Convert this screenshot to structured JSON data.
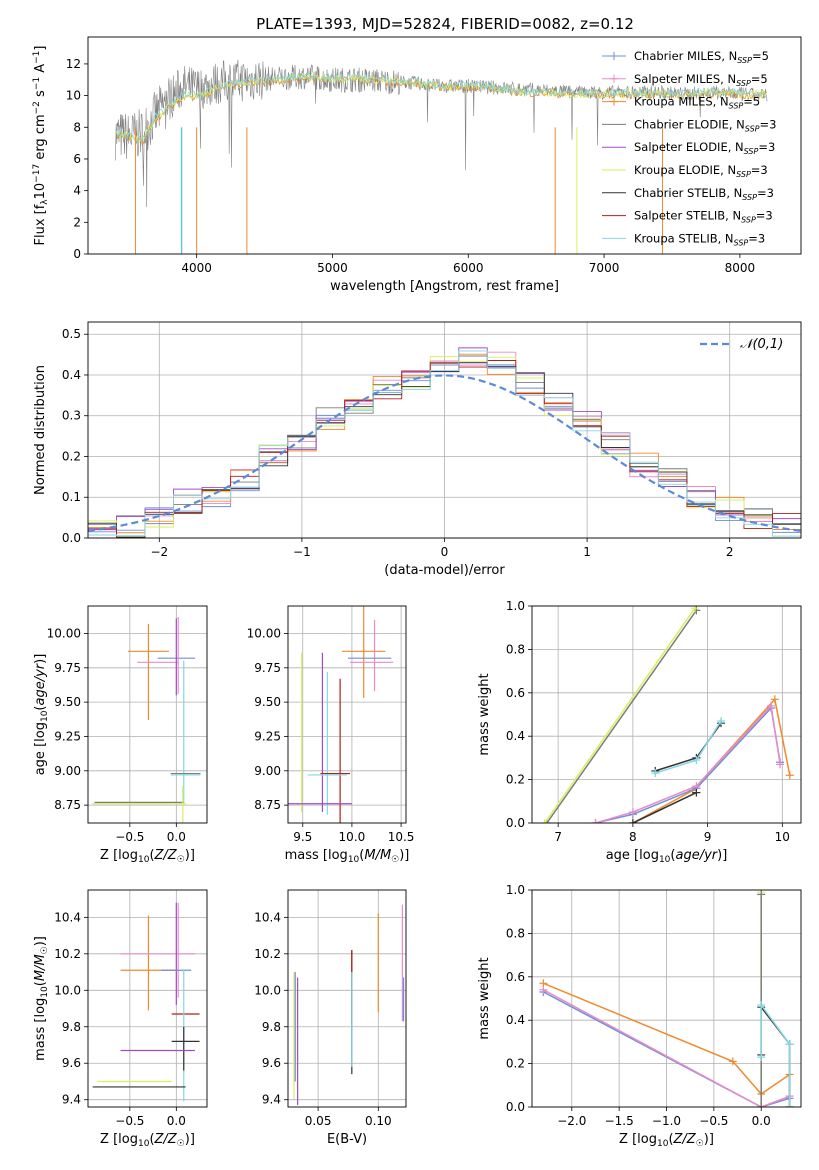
{
  "title": "PLATE=1393, MJD=52824, FIBERID=0082, z=0.12",
  "colors": {
    "gray": "#808080",
    "blue": "#1f77b4",
    "orange": "#ff7f0e",
    "green": "#2ca02c",
    "red": "#d62728",
    "purple": "#9467bd",
    "brown": "#8c564b",
    "pink": "#e377c2",
    "olive": "#bcbd22",
    "cyan": "#17becf",
    "cornflower": "#6495ed",
    "yellowgreen": "#d4e94d",
    "normal": "#5b8bd6",
    "grid": "#b0b0b0"
  },
  "legend_models": [
    {
      "name": "Chabrier MILES, N",
      "sub": "SSP",
      "eq": "=5",
      "color": "#6f8fd8"
    },
    {
      "name": "Salpeter MILES, N",
      "sub": "SSP",
      "eq": "=5",
      "color": "#e98ac9"
    },
    {
      "name": "Kroupa MILES, N",
      "sub": "SSP",
      "eq": "=5",
      "color": "#f08a2e"
    },
    {
      "name": "Chabrier ELODIE, N",
      "sub": "SSP",
      "eq": "=3",
      "color": "#7c7c7c"
    },
    {
      "name": "Salpeter ELODIE, N",
      "sub": "SSP",
      "eq": "=3",
      "color": "#a04cc9"
    },
    {
      "name": "Kroupa ELODIE, N",
      "sub": "SSP",
      "eq": "=3",
      "color": "#d9ef5a"
    },
    {
      "name": "Chabrier STELIB, N",
      "sub": "SSP",
      "eq": "=3",
      "color": "#333333"
    },
    {
      "name": "Salpeter STELIB, N",
      "sub": "SSP",
      "eq": "=3",
      "color": "#b51d1d"
    },
    {
      "name": "Kroupa STELIB, N",
      "sub": "SSP",
      "eq": "=3",
      "color": "#84d7e6"
    }
  ],
  "chart_data": [
    {
      "id": "spectrum",
      "type": "line",
      "xlabel": "wavelength [Angstrom, rest frame]",
      "ylabel": "Flux [f_λ10^-17 erg cm^-2 s^-1 A^-1]",
      "xlim": [
        3200,
        8450
      ],
      "ylim": [
        0,
        13.7
      ],
      "xticks": [
        4000,
        5000,
        6000,
        7000,
        8000
      ],
      "yticks": [
        0,
        2,
        4,
        6,
        8,
        10,
        12
      ],
      "grid": false,
      "legend": "top-right",
      "data_series": {
        "name": "data",
        "x": [
          3400,
          3500,
          3600,
          3700,
          3800,
          3900,
          4000,
          4200,
          4400,
          4600,
          4800,
          5000,
          5200,
          5400,
          5600,
          5800,
          6000,
          6200,
          6400,
          6600,
          6800,
          7000,
          7200,
          7400,
          7600,
          7800,
          8000,
          8200
        ],
        "y": [
          7.5,
          7.4,
          7.6,
          8.8,
          9.8,
          10.6,
          10.4,
          10.9,
          11.0,
          11.1,
          11.2,
          11.0,
          11.0,
          10.9,
          10.8,
          10.6,
          10.6,
          10.5,
          10.4,
          10.3,
          10.2,
          10.2,
          10.2,
          10.2,
          10.1,
          10.2,
          10.1,
          10.0
        ]
      },
      "model_series": {
        "name": "models",
        "x": [
          3400,
          3500,
          3600,
          3700,
          3800,
          3900,
          4000,
          4200,
          4400,
          4600,
          4800,
          5000,
          5200,
          5400,
          5600,
          5800,
          6000,
          6200,
          6400,
          6600,
          6800,
          7000,
          7200,
          7400,
          7600,
          7800,
          8000,
          8200
        ],
        "y": [
          7.6,
          7.4,
          7.2,
          8.6,
          9.3,
          10.0,
          10.0,
          10.6,
          10.9,
          11.0,
          11.2,
          11.1,
          11.1,
          10.9,
          10.8,
          10.6,
          10.6,
          10.5,
          10.2,
          10.2,
          10.1,
          10.1,
          10.1,
          10.1,
          10.1,
          10.2,
          10.1,
          10.1
        ]
      }
    },
    {
      "id": "residuals",
      "type": "line",
      "xlabel": "(data-model)/error",
      "ylabel": "Normed distribution",
      "xlim": [
        -2.5,
        2.5
      ],
      "ylim": [
        0,
        0.53
      ],
      "xticks": [
        -2,
        -1,
        0,
        1,
        2
      ],
      "yticks": [
        0.0,
        0.1,
        0.2,
        0.3,
        0.4,
        0.5
      ],
      "grid": true,
      "legend": "top-right",
      "normal_label": "𝒩(0,1)",
      "hist_edges": [
        -2.5,
        -2.3,
        -2.1,
        -1.9,
        -1.7,
        -1.5,
        -1.3,
        -1.1,
        -0.9,
        -0.7,
        -0.5,
        -0.3,
        -0.1,
        0.1,
        0.3,
        0.5,
        0.7,
        0.9,
        1.1,
        1.3,
        1.5,
        1.7,
        1.9,
        2.1,
        2.3,
        2.5
      ],
      "hist_values": [
        0.02,
        0.03,
        0.05,
        0.09,
        0.1,
        0.14,
        0.2,
        0.24,
        0.29,
        0.31,
        0.37,
        0.38,
        0.42,
        0.44,
        0.43,
        0.38,
        0.33,
        0.29,
        0.23,
        0.18,
        0.14,
        0.1,
        0.07,
        0.05,
        0.03
      ]
    },
    {
      "id": "age-vs-Z",
      "type": "scatter",
      "xlabel": "Z [log10(Z/Z☉)]",
      "ylabel": "age  [log10(age/yr)]",
      "xlim": [
        -0.95,
        0.33
      ],
      "ylim": [
        8.62,
        10.2
      ],
      "xticks": [
        -0.5,
        0.0
      ],
      "yticks": [
        8.75,
        9.0,
        9.25,
        9.5,
        9.75,
        10.0
      ],
      "grid": true,
      "errorbars": [
        {
          "x": -0.3,
          "xerr": 0.22,
          "y": 9.87,
          "yerr": 0.0,
          "color": "#f08a2e"
        },
        {
          "x": -0.3,
          "xerr": 0.0,
          "y": 9.72,
          "yerr": 0.35,
          "color": "#f08a2e"
        },
        {
          "x": -0.2,
          "xerr": 0.22,
          "y": 9.79,
          "yerr": 0.0,
          "color": "#e98ac9"
        },
        {
          "x": 0.0,
          "xerr": 0.2,
          "y": 9.82,
          "yerr": 0.0,
          "color": "#6f8fd8"
        },
        {
          "x": 0.0,
          "xerr": 0.0,
          "y": 9.83,
          "yerr": 0.28,
          "color": "#a04cc9"
        },
        {
          "x": 0.02,
          "xerr": 0.0,
          "y": 9.84,
          "yerr": 0.28,
          "color": "#e98ac9"
        },
        {
          "x": 0.08,
          "xerr": 0.0,
          "y": 9.28,
          "yerr": 0.52,
          "color": "#84d7e6"
        },
        {
          "x": 0.1,
          "xerr": 0.16,
          "y": 8.98,
          "yerr": 0.0,
          "color": "#7c7c7c"
        },
        {
          "x": 0.1,
          "xerr": 0.16,
          "y": 8.97,
          "yerr": 0.0,
          "color": "#84d7e6"
        },
        {
          "x": -0.4,
          "xerr": 0.48,
          "y": 8.77,
          "yerr": 0.0,
          "color": "#7c7c7c"
        },
        {
          "x": -0.4,
          "xerr": 0.5,
          "y": 8.76,
          "yerr": 0.0,
          "color": "#d9ef5a"
        },
        {
          "x": 0.05,
          "xerr": 0.0,
          "y": 8.76,
          "yerr": 0.0,
          "color": "#a04cc9"
        },
        {
          "x": 0.07,
          "xerr": 0.0,
          "y": 8.75,
          "yerr": 0.14,
          "color": "#d9ef5a"
        }
      ]
    },
    {
      "id": "age-vs-mass",
      "type": "scatter",
      "xlabel": "mass [log10(M/M☉)]",
      "ylabel": "",
      "xlim": [
        9.35,
        10.55
      ],
      "ylim": [
        8.62,
        10.2
      ],
      "xticks": [
        9.5,
        10.0,
        10.5
      ],
      "yticks": [
        8.75,
        9.0,
        9.25,
        9.5,
        9.75,
        10.0
      ],
      "grid": true,
      "errorbars": [
        {
          "x": 10.12,
          "xerr": 0.22,
          "y": 9.87,
          "yerr": 0.0,
          "color": "#f08a2e"
        },
        {
          "x": 10.12,
          "xerr": 0.0,
          "y": 9.88,
          "yerr": 0.35,
          "color": "#f08a2e"
        },
        {
          "x": 10.23,
          "xerr": 0.0,
          "y": 9.84,
          "yerr": 0.26,
          "color": "#e98ac9"
        },
        {
          "x": 10.18,
          "xerr": 0.22,
          "y": 9.82,
          "yerr": 0.0,
          "color": "#6f8fd8"
        },
        {
          "x": 10.2,
          "xerr": 0.22,
          "y": 9.79,
          "yerr": 0.0,
          "color": "#e98ac9"
        },
        {
          "x": 9.7,
          "xerr": 0.0,
          "y": 9.28,
          "yerr": 0.58,
          "color": "#a04cc9"
        },
        {
          "x": 9.49,
          "xerr": 0.0,
          "y": 9.28,
          "yerr": 0.58,
          "color": "#d9ef5a"
        },
        {
          "x": 9.75,
          "xerr": 0.0,
          "y": 9.2,
          "yerr": 0.52,
          "color": "#84d7e6"
        },
        {
          "x": 9.88,
          "xerr": 0.0,
          "y": 9.12,
          "yerr": 0.55,
          "color": "#b51d1d"
        },
        {
          "x": 9.83,
          "xerr": 0.15,
          "y": 8.98,
          "yerr": 0.0,
          "color": "#b51d1d"
        },
        {
          "x": 9.75,
          "xerr": 0.2,
          "y": 8.97,
          "yerr": 0.0,
          "color": "#84d7e6"
        },
        {
          "x": 9.5,
          "xerr": 0.0,
          "y": 8.76,
          "yerr": 0.0,
          "color": "#d9ef5a"
        },
        {
          "x": 9.6,
          "xerr": 0.4,
          "y": 8.76,
          "yerr": 0.0,
          "color": "#a04cc9"
        }
      ]
    },
    {
      "id": "massweight-vs-age",
      "type": "line",
      "xlabel": "age  [log10(age/yr)]",
      "ylabel": "mass weight",
      "xlim": [
        6.65,
        10.25
      ],
      "ylim": [
        0.0,
        1.0
      ],
      "xticks": [
        7,
        8,
        9,
        10
      ],
      "yticks": [
        0.0,
        0.2,
        0.4,
        0.6,
        0.8,
        1.0
      ],
      "grid": true,
      "series": [
        {
          "color": "#f08a2e",
          "x": [
            8.0,
            8.8,
            9.9,
            10.1
          ],
          "y": [
            0.0,
            0.15,
            0.57,
            0.22
          ]
        },
        {
          "color": "#6f8fd8",
          "x": [
            7.5,
            8.0,
            8.85,
            9.85,
            9.97
          ],
          "y": [
            0.0,
            0.04,
            0.16,
            0.53,
            0.28
          ]
        },
        {
          "color": "#e98ac9",
          "x": [
            7.5,
            8.0,
            8.85,
            9.85,
            9.97
          ],
          "y": [
            0.0,
            0.05,
            0.17,
            0.54,
            0.27
          ]
        },
        {
          "color": "#7c7c7c",
          "x": [
            6.85,
            8.85
          ],
          "y": [
            0.0,
            0.98
          ]
        },
        {
          "color": "#d9ef5a",
          "x": [
            6.82,
            8.83
          ],
          "y": [
            0.0,
            0.99
          ]
        },
        {
          "color": "#333333",
          "x": [
            8.3,
            8.85,
            9.18
          ],
          "y": [
            0.24,
            0.3,
            0.46
          ]
        },
        {
          "color": "#84d7e6",
          "x": [
            8.3,
            8.85,
            9.18
          ],
          "y": [
            0.23,
            0.29,
            0.47
          ]
        },
        {
          "color": "#333333",
          "x": [
            8.0,
            8.85
          ],
          "y": [
            0.0,
            0.14
          ]
        }
      ]
    },
    {
      "id": "mass-vs-Z",
      "type": "scatter",
      "xlabel": "Z [log10(Z/Z☉)]",
      "ylabel": "mass [log10(M/M☉)]",
      "xlim": [
        -0.95,
        0.33
      ],
      "ylim": [
        9.36,
        10.55
      ],
      "xticks": [
        -0.5,
        0.0
      ],
      "yticks": [
        9.4,
        9.6,
        9.8,
        10.0,
        10.2,
        10.4
      ],
      "grid": true,
      "errorbars": [
        {
          "x": -0.3,
          "xerr": 0.0,
          "y": 10.15,
          "yerr": 0.26,
          "color": "#f08a2e"
        },
        {
          "x": -0.3,
          "xerr": 0.3,
          "y": 10.11,
          "yerr": 0.0,
          "color": "#f08a2e"
        },
        {
          "x": -0.2,
          "xerr": 0.4,
          "y": 10.2,
          "yerr": 0.0,
          "color": "#e98ac9"
        },
        {
          "x": 0.0,
          "xerr": 0.0,
          "y": 10.2,
          "yerr": 0.28,
          "color": "#a04cc9"
        },
        {
          "x": 0.02,
          "xerr": 0.0,
          "y": 10.22,
          "yerr": 0.26,
          "color": "#e98ac9"
        },
        {
          "x": 0.0,
          "xerr": 0.16,
          "y": 10.11,
          "yerr": 0.0,
          "color": "#6f8fd8"
        },
        {
          "x": 0.1,
          "xerr": 0.15,
          "y": 9.87,
          "yerr": 0.0,
          "color": "#b51d1d"
        },
        {
          "x": 0.08,
          "xerr": 0.0,
          "y": 9.75,
          "yerr": 0.36,
          "color": "#84d7e6"
        },
        {
          "x": 0.08,
          "xerr": 0.0,
          "y": 9.68,
          "yerr": 0.12,
          "color": "#333333"
        },
        {
          "x": 0.1,
          "xerr": 0.15,
          "y": 9.72,
          "yerr": 0.0,
          "color": "#333333"
        },
        {
          "x": -0.2,
          "xerr": 0.4,
          "y": 9.67,
          "yerr": 0.0,
          "color": "#a04cc9"
        },
        {
          "x": -0.4,
          "xerr": 0.5,
          "y": 9.47,
          "yerr": 0.0,
          "color": "#333333"
        },
        {
          "x": -0.45,
          "xerr": 0.4,
          "y": 9.5,
          "yerr": 0.0,
          "color": "#d9ef5a"
        }
      ]
    },
    {
      "id": "mass-vs-EBV",
      "type": "scatter",
      "xlabel": "E(B-V)",
      "ylabel": "",
      "xlim": [
        0.025,
        0.123
      ],
      "ylim": [
        9.36,
        10.55
      ],
      "xticks": [
        0.05,
        0.1
      ],
      "yticks": [
        9.4,
        9.6,
        9.8,
        10.0,
        10.2,
        10.4
      ],
      "grid": true,
      "errorbars": [
        {
          "x": 0.03,
          "xerr": 0.0,
          "y": 9.75,
          "yerr": 0.35,
          "color": "#d9ef5a"
        },
        {
          "x": 0.031,
          "xerr": 0.0,
          "y": 9.8,
          "yerr": 0.3,
          "color": "#6f8fd8"
        },
        {
          "x": 0.033,
          "xerr": 0.0,
          "y": 9.72,
          "yerr": 0.35,
          "color": "#a04cc9"
        },
        {
          "x": 0.078,
          "xerr": 0.0,
          "y": 9.88,
          "yerr": 0.34,
          "color": "#333333"
        },
        {
          "x": 0.078,
          "xerr": 0.0,
          "y": 10.02,
          "yerr": 0.2,
          "color": "#b51d1d"
        },
        {
          "x": 0.078,
          "xerr": 0.0,
          "y": 9.84,
          "yerr": 0.26,
          "color": "#84d7e6"
        },
        {
          "x": 0.1,
          "xerr": 0.0,
          "y": 10.15,
          "yerr": 0.27,
          "color": "#f08a2e"
        },
        {
          "x": 0.12,
          "xerr": 0.0,
          "y": 10.15,
          "yerr": 0.32,
          "color": "#e98ac9"
        },
        {
          "x": 0.121,
          "xerr": 0.0,
          "y": 9.95,
          "yerr": 0.12,
          "color": "#6f8fd8"
        }
      ]
    },
    {
      "id": "massweight-vs-Z",
      "type": "line",
      "xlabel": "Z [log10(Z/Z☉)]",
      "ylabel": "mass weight",
      "xlim": [
        -2.42,
        0.42
      ],
      "ylim": [
        0.0,
        1.0
      ],
      "xticks": [
        -2.0,
        -1.5,
        -1.0,
        -0.5,
        0.0
      ],
      "yticks": [
        0.0,
        0.2,
        0.4,
        0.6,
        0.8,
        1.0
      ],
      "grid": true,
      "series": [
        {
          "color": "#f08a2e",
          "x": [
            -2.3,
            -0.3,
            0.0,
            0.3,
            0.3
          ],
          "y": [
            0.57,
            0.21,
            0.06,
            0.15,
            0.0
          ]
        },
        {
          "color": "#6f8fd8",
          "x": [
            -2.3,
            0.0,
            0.3
          ],
          "y": [
            0.53,
            0.0,
            0.04
          ]
        },
        {
          "color": "#e98ac9",
          "x": [
            -2.3,
            0.0,
            0.3
          ],
          "y": [
            0.54,
            0.0,
            0.05
          ]
        },
        {
          "color": "#d9ef5a",
          "x": [
            0.0,
            0.0
          ],
          "y": [
            0.0,
            0.99
          ]
        },
        {
          "color": "#7c7c7c",
          "x": [
            0.0,
            0.0
          ],
          "y": [
            0.0,
            0.98
          ]
        },
        {
          "color": "#333333",
          "x": [
            0.0,
            0.0,
            0.3,
            0.3
          ],
          "y": [
            0.24,
            0.46,
            0.29,
            0.0
          ]
        },
        {
          "color": "#84d7e6",
          "x": [
            0.0,
            0.0,
            0.3,
            0.3
          ],
          "y": [
            0.23,
            0.47,
            0.29,
            0.0
          ]
        }
      ]
    }
  ]
}
